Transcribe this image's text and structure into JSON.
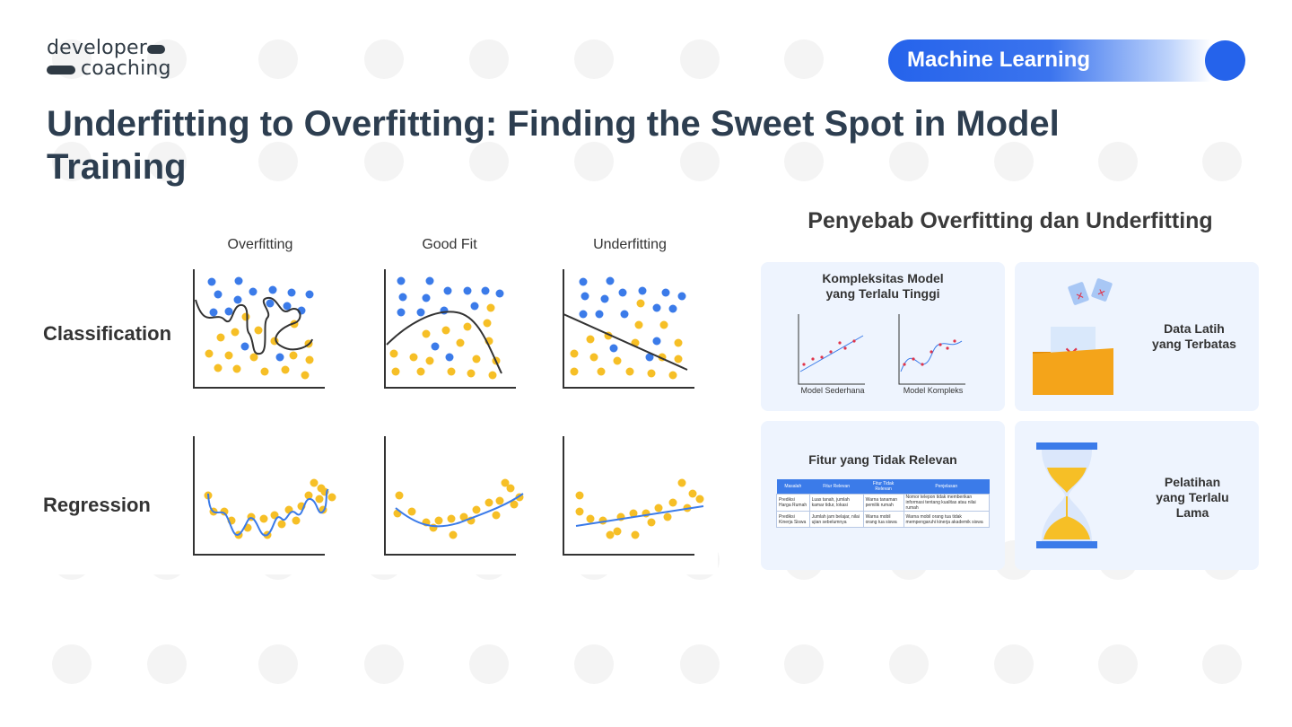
{
  "brand": {
    "logo_line1": "developer",
    "logo_line2": "coaching"
  },
  "header": {
    "category": "Machine Learning",
    "title": "Underfitting to Overfitting: Finding the Sweet Spot in Model Training"
  },
  "diagram": {
    "columns": [
      "Overfitting",
      "Good Fit",
      "Underfitting"
    ],
    "rows": [
      "Classification",
      "Regression"
    ]
  },
  "causes": {
    "title": "Penyebab Overfitting dan Underfitting",
    "cards": [
      {
        "title_line1": "Kompleksitas Model",
        "title_line2": "yang Terlalu Tinggi",
        "caption_left": "Model Sederhana",
        "caption_right": "Model Kompleks"
      },
      {
        "title_line1": "Data Latih",
        "title_line2": "yang Terbatas"
      },
      {
        "title": "Fitur yang Tidak Relevan",
        "table": {
          "headers": [
            "Masalah",
            "Fitur Relevan",
            "Fitur Tidak Relevan",
            "Penjelasan"
          ],
          "rows": [
            [
              "Prediksi Harga Rumah",
              "Luas tanah, jumlah kamar tidur, lokasi",
              "Warna tanaman pemilik rumah",
              "Nomor telepon tidak memberikan informasi tentang kualitas atau nilai rumah"
            ],
            [
              "Prediksi Kinerja Siswa",
              "Jumlah jam belajar, nilai ujian sebelumnya",
              "Warna mobil orang tua siswa",
              "Warna mobil orang tua tidak mempengaruhi kinerja akademik siswa"
            ]
          ]
        }
      },
      {
        "title_line1": "Pelatihan",
        "title_line2": "yang Terlalu",
        "title_line3": "Lama"
      }
    ]
  },
  "colors": {
    "accent": "#2563eb",
    "blue_dot": "#3b7be9",
    "yellow_dot": "#f6bf26",
    "text": "#2d3e50",
    "card_bg": "#eef4fe"
  }
}
